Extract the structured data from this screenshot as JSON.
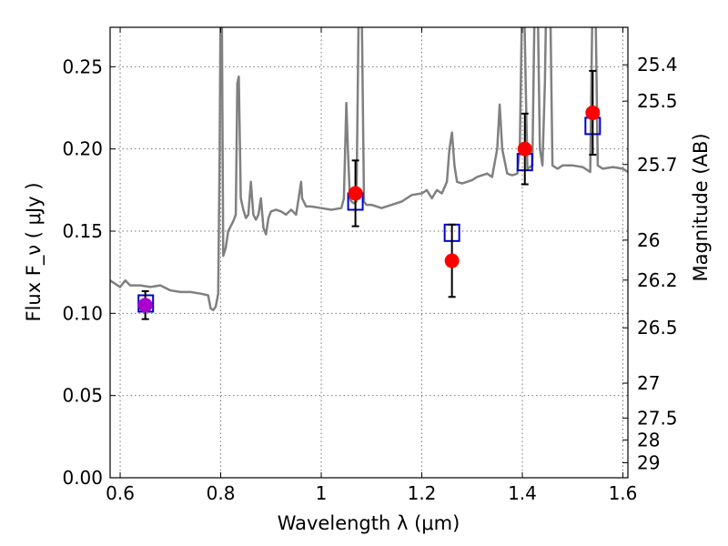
{
  "chart_data": {
    "type": "scatter",
    "xlabel": "Wavelength  λ (μm)",
    "ylabel": "Flux  F_ν  ( μJy )",
    "ylabel_right": "Magnitude (AB)",
    "xlim": [
      0.58,
      1.61
    ],
    "ylim": [
      0.0,
      0.274
    ],
    "grid": true,
    "x_ticks": [
      {
        "value": 0.6,
        "label": "0.6"
      },
      {
        "value": 0.8,
        "label": "0.8"
      },
      {
        "value": 1.0,
        "label": "1"
      },
      {
        "value": 1.2,
        "label": "1.2"
      },
      {
        "value": 1.4,
        "label": "1.4"
      },
      {
        "value": 1.6,
        "label": "1.6"
      }
    ],
    "y_ticks": [
      {
        "value": 0.0,
        "label": "0.00"
      },
      {
        "value": 0.05,
        "label": "0.05"
      },
      {
        "value": 0.1,
        "label": "0.10"
      },
      {
        "value": 0.15,
        "label": "0.15"
      },
      {
        "value": 0.2,
        "label": "0.20"
      },
      {
        "value": 0.25,
        "label": "0.25"
      }
    ],
    "mag_ticks": [
      {
        "value": 25.4,
        "label": "25.4"
      },
      {
        "value": 25.5,
        "label": "25.5"
      },
      {
        "value": 25.7,
        "label": "25.7"
      },
      {
        "value": 26.0,
        "label": "26"
      },
      {
        "value": 26.2,
        "label": "26.2"
      },
      {
        "value": 26.5,
        "label": "26.5"
      },
      {
        "value": 27.0,
        "label": "27"
      },
      {
        "value": 27.5,
        "label": "27.5"
      },
      {
        "value": 28.0,
        "label": "28"
      },
      {
        "value": 29.0,
        "label": "29"
      }
    ],
    "series": [
      {
        "kind": "line",
        "color": "#808080",
        "points": [
          [
            0.58,
            0.12
          ],
          [
            0.59,
            0.118
          ],
          [
            0.6,
            0.116
          ],
          [
            0.61,
            0.12
          ],
          [
            0.62,
            0.117
          ],
          [
            0.64,
            0.117
          ],
          [
            0.66,
            0.116
          ],
          [
            0.68,
            0.117
          ],
          [
            0.7,
            0.114
          ],
          [
            0.72,
            0.113
          ],
          [
            0.74,
            0.113
          ],
          [
            0.76,
            0.112
          ],
          [
            0.775,
            0.111
          ],
          [
            0.78,
            0.103
          ],
          [
            0.785,
            0.102
          ],
          [
            0.79,
            0.104
          ],
          [
            0.795,
            0.112
          ],
          [
            0.798,
            0.2
          ],
          [
            0.8,
            0.3
          ],
          [
            0.802,
            0.3
          ],
          [
            0.805,
            0.135
          ],
          [
            0.81,
            0.14
          ],
          [
            0.815,
            0.15
          ],
          [
            0.82,
            0.153
          ],
          [
            0.825,
            0.156
          ],
          [
            0.83,
            0.16
          ],
          [
            0.833,
            0.24
          ],
          [
            0.836,
            0.244
          ],
          [
            0.84,
            0.17
          ],
          [
            0.845,
            0.163
          ],
          [
            0.85,
            0.158
          ],
          [
            0.855,
            0.16
          ],
          [
            0.86,
            0.18
          ],
          [
            0.865,
            0.16
          ],
          [
            0.87,
            0.157
          ],
          [
            0.875,
            0.16
          ],
          [
            0.88,
            0.17
          ],
          [
            0.885,
            0.152
          ],
          [
            0.89,
            0.148
          ],
          [
            0.895,
            0.158
          ],
          [
            0.9,
            0.162
          ],
          [
            0.91,
            0.163
          ],
          [
            0.92,
            0.162
          ],
          [
            0.93,
            0.16
          ],
          [
            0.94,
            0.163
          ],
          [
            0.95,
            0.16
          ],
          [
            0.955,
            0.17
          ],
          [
            0.96,
            0.18
          ],
          [
            0.962,
            0.17
          ],
          [
            0.97,
            0.165
          ],
          [
            0.98,
            0.165
          ],
          [
            1.0,
            0.164
          ],
          [
            1.02,
            0.163
          ],
          [
            1.04,
            0.164
          ],
          [
            1.045,
            0.17
          ],
          [
            1.05,
            0.228
          ],
          [
            1.053,
            0.2
          ],
          [
            1.057,
            0.17
          ],
          [
            1.06,
            0.168
          ],
          [
            1.065,
            0.167
          ],
          [
            1.07,
            0.168
          ],
          [
            1.075,
            0.3
          ],
          [
            1.08,
            0.3
          ],
          [
            1.085,
            0.168
          ],
          [
            1.09,
            0.166
          ],
          [
            1.1,
            0.166
          ],
          [
            1.12,
            0.164
          ],
          [
            1.14,
            0.166
          ],
          [
            1.16,
            0.168
          ],
          [
            1.18,
            0.172
          ],
          [
            1.2,
            0.173
          ],
          [
            1.21,
            0.175
          ],
          [
            1.22,
            0.17
          ],
          [
            1.23,
            0.175
          ],
          [
            1.24,
            0.173
          ],
          [
            1.25,
            0.18
          ],
          [
            1.255,
            0.2
          ],
          [
            1.26,
            0.21
          ],
          [
            1.265,
            0.19
          ],
          [
            1.27,
            0.18
          ],
          [
            1.28,
            0.179
          ],
          [
            1.29,
            0.18
          ],
          [
            1.3,
            0.181
          ],
          [
            1.31,
            0.183
          ],
          [
            1.32,
            0.184
          ],
          [
            1.33,
            0.185
          ],
          [
            1.34,
            0.183
          ],
          [
            1.35,
            0.2
          ],
          [
            1.355,
            0.227
          ],
          [
            1.36,
            0.2
          ],
          [
            1.37,
            0.185
          ],
          [
            1.38,
            0.184
          ],
          [
            1.39,
            0.185
          ],
          [
            1.395,
            0.2
          ],
          [
            1.4,
            0.3
          ],
          [
            1.403,
            0.3
          ],
          [
            1.41,
            0.188
          ],
          [
            1.42,
            0.19
          ],
          [
            1.425,
            0.3
          ],
          [
            1.43,
            0.3
          ],
          [
            1.435,
            0.2
          ],
          [
            1.44,
            0.19
          ],
          [
            1.445,
            0.24
          ],
          [
            1.448,
            0.3
          ],
          [
            1.455,
            0.3
          ],
          [
            1.46,
            0.19
          ],
          [
            1.47,
            0.188
          ],
          [
            1.48,
            0.19
          ],
          [
            1.5,
            0.19
          ],
          [
            1.52,
            0.189
          ],
          [
            1.535,
            0.186
          ],
          [
            1.54,
            0.3
          ],
          [
            1.545,
            0.3
          ],
          [
            1.55,
            0.19
          ],
          [
            1.56,
            0.188
          ],
          [
            1.58,
            0.189
          ],
          [
            1.6,
            0.188
          ],
          [
            1.61,
            0.186
          ]
        ]
      },
      {
        "kind": "open-square",
        "color": "#0000cc",
        "points": [
          {
            "x": 0.651,
            "y": 0.106
          },
          {
            "x": 1.068,
            "y": 0.168
          },
          {
            "x": 1.26,
            "y": 0.149
          },
          {
            "x": 1.405,
            "y": 0.192
          },
          {
            "x": 1.54,
            "y": 0.214
          }
        ]
      },
      {
        "kind": "filled-circle",
        "color": "#ff0000",
        "points": [
          {
            "x": 0.65,
            "y": 0.105,
            "err": 0.0085,
            "color": "#aa00cc"
          },
          {
            "x": 1.068,
            "y": 0.173,
            "err": 0.02
          },
          {
            "x": 1.26,
            "y": 0.132,
            "err": 0.022
          },
          {
            "x": 1.405,
            "y": 0.2,
            "err": 0.0215
          },
          {
            "x": 1.54,
            "y": 0.222,
            "err": 0.0255
          }
        ]
      }
    ]
  }
}
